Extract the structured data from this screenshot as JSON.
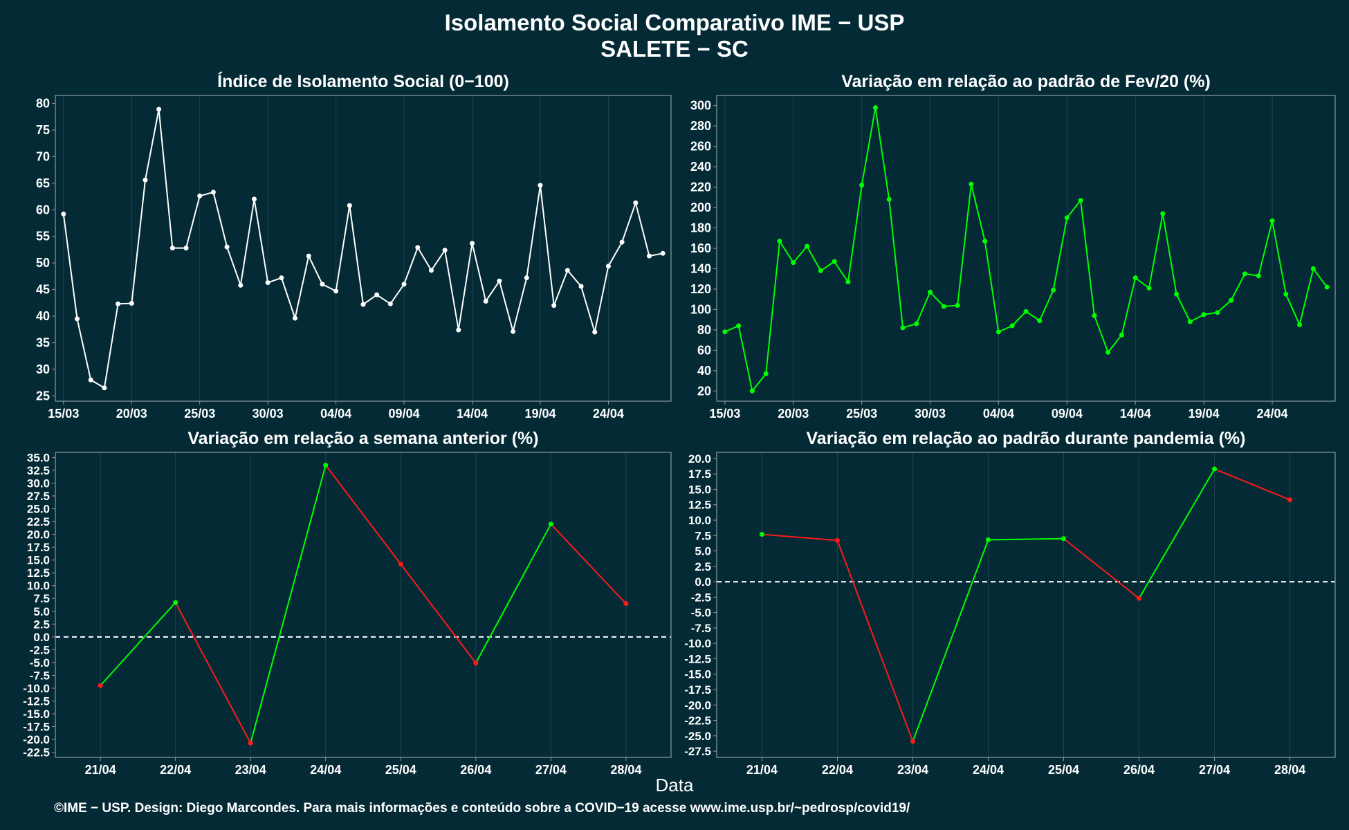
{
  "page": {
    "title": "Isolamento Social Comparativo IME − USP",
    "subtitle": "SALETE − SC",
    "xlabel": "Data",
    "footer": "©IME − USP. Design: Diego Marcondes. Para mais informações e conteúdo sobre a COVID−19 acesse www.ime.usp.br/~pedrosp/covid19/"
  },
  "colors": {
    "background": "#042a36",
    "panel": "#042a36",
    "axis": "#8a9ba2",
    "grid": "#1c4450",
    "white_series": "#ffffff",
    "green": "#00ff00",
    "red": "#ff1a1a"
  },
  "chart_data": [
    {
      "type": "line",
      "title": "Índice de Isolamento Social (0−100)",
      "color": "white",
      "ylim": [
        24,
        81.5
      ],
      "yticks": [
        25,
        30,
        35,
        40,
        45,
        50,
        55,
        60,
        65,
        70,
        75,
        80
      ],
      "xlim": [
        -0.6,
        44.6
      ],
      "xticks": [
        0,
        5,
        10,
        15,
        20,
        25,
        30,
        35,
        40
      ],
      "xtick_labels": [
        "15/03",
        "20/03",
        "25/03",
        "30/03",
        "04/04",
        "09/04",
        "14/04",
        "19/04",
        "24/04"
      ],
      "values": [
        59.2,
        39.5,
        28.0,
        26.5,
        42.3,
        42.4,
        65.6,
        78.9,
        52.8,
        52.8,
        62.6,
        63.3,
        53.0,
        45.8,
        62.0,
        46.3,
        47.2,
        39.6,
        51.3,
        46.0,
        44.7,
        60.8,
        42.2,
        44.0,
        42.3,
        46.0,
        52.9,
        48.6,
        52.4,
        37.4,
        53.7,
        42.8,
        46.6,
        37.1,
        47.2,
        64.6,
        42.0,
        48.6,
        45.6,
        37.0,
        49.4,
        53.9,
        61.3,
        51.3,
        51.8
      ],
      "grid": true
    },
    {
      "type": "line",
      "title": "Variação em relação ao padrão de Fev/20 (%)",
      "color": "green",
      "ylim": [
        10,
        310
      ],
      "yticks": [
        20,
        40,
        60,
        80,
        100,
        120,
        140,
        160,
        180,
        200,
        220,
        240,
        260,
        280,
        300
      ],
      "xlim": [
        -0.6,
        44.6
      ],
      "xticks": [
        0,
        5,
        10,
        15,
        20,
        25,
        30,
        35,
        40
      ],
      "xtick_labels": [
        "15/03",
        "20/03",
        "25/03",
        "30/03",
        "04/04",
        "09/04",
        "14/04",
        "19/04",
        "24/04"
      ],
      "values": [
        78,
        84,
        20,
        37,
        167,
        146,
        162,
        138,
        147,
        127,
        222,
        298,
        208,
        82,
        86,
        117,
        103,
        104,
        223,
        167,
        78,
        84,
        98,
        89,
        119,
        190,
        207,
        94,
        58,
        75,
        131,
        121,
        194,
        115,
        88,
        95,
        97,
        109,
        135,
        133,
        187,
        115,
        85,
        140,
        122
      ],
      "grid": true
    },
    {
      "type": "line",
      "title": "Variação em relação a semana anterior (%)",
      "color_rule": "green when rising, red when falling",
      "ylim": [
        -23.5,
        36
      ],
      "yticks": [
        -22.5,
        -20.0,
        -17.5,
        -15.0,
        -12.5,
        -10.0,
        -7.5,
        -5.0,
        -2.5,
        0.0,
        2.5,
        5.0,
        7.5,
        10.0,
        12.5,
        15.0,
        17.5,
        20.0,
        22.5,
        25.0,
        27.5,
        30.0,
        32.5,
        35.0
      ],
      "categories": [
        "21/04",
        "22/04",
        "23/04",
        "24/04",
        "25/04",
        "26/04",
        "27/04",
        "28/04"
      ],
      "values": [
        -9.5,
        6.7,
        -20.7,
        33.5,
        14.2,
        -5.1,
        22.0,
        6.5
      ],
      "reference_line": 0,
      "grid": true
    },
    {
      "type": "line",
      "title": "Variação em relação ao padrão durante pandemia (%)",
      "color_rule": "green when rising, red when falling",
      "ylim": [
        -28.5,
        21
      ],
      "yticks": [
        -27.5,
        -25.0,
        -22.5,
        -20.0,
        -17.5,
        -15.0,
        -12.5,
        -10.0,
        -7.5,
        -5.0,
        -2.5,
        0.0,
        2.5,
        5.0,
        7.5,
        10.0,
        12.5,
        15.0,
        17.5,
        20.0
      ],
      "categories": [
        "21/04",
        "22/04",
        "23/04",
        "24/04",
        "25/04",
        "26/04",
        "27/04",
        "28/04"
      ],
      "values": [
        7.7,
        6.7,
        -25.9,
        6.8,
        7.0,
        -2.7,
        18.3,
        13.3
      ],
      "reference_line": 0,
      "grid": true
    }
  ]
}
